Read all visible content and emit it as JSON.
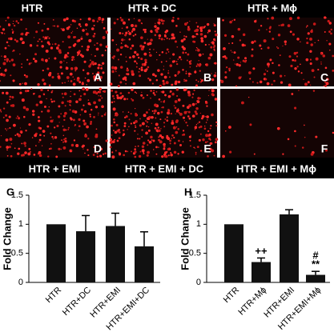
{
  "panels": {
    "top_labels": [
      "HTR",
      "HTR + DC",
      "HTR + Mϕ"
    ],
    "bottom_labels": [
      "HTR + EMI",
      "HTR + EMI + DC",
      "HTR + EMI + Mϕ"
    ],
    "letters": [
      "A",
      "B",
      "C",
      "D",
      "E",
      "F"
    ]
  },
  "chart_data": [
    {
      "type": "bar",
      "panel_label": "G",
      "y_label": "Fold Change",
      "categories": [
        "HTR",
        "HTR+DC",
        "HTR+EMI",
        "HTR+EMI+DC"
      ],
      "values": [
        1.0,
        0.88,
        0.97,
        0.62
      ],
      "errors": [
        0,
        0.27,
        0.22,
        0.25
      ],
      "color": "#111111",
      "ylim": [
        0,
        1.5
      ],
      "yticks": [
        0,
        0.5,
        1,
        1.5
      ]
    },
    {
      "type": "bar",
      "panel_label": "H",
      "y_label": "Fold Change",
      "categories": [
        "HTR",
        "HTR+Mϕ",
        "HTR+EMI",
        "HTR+EMI+Mϕ"
      ],
      "values": [
        1.0,
        0.35,
        1.17,
        0.13
      ],
      "errors": [
        0,
        0.07,
        0.08,
        0.06
      ],
      "annotations": [
        "++",
        "#",
        "**"
      ],
      "color": "#111111",
      "ylim": [
        0,
        1.5
      ],
      "yticks": [
        0,
        0.5,
        1,
        1.5
      ]
    }
  ]
}
